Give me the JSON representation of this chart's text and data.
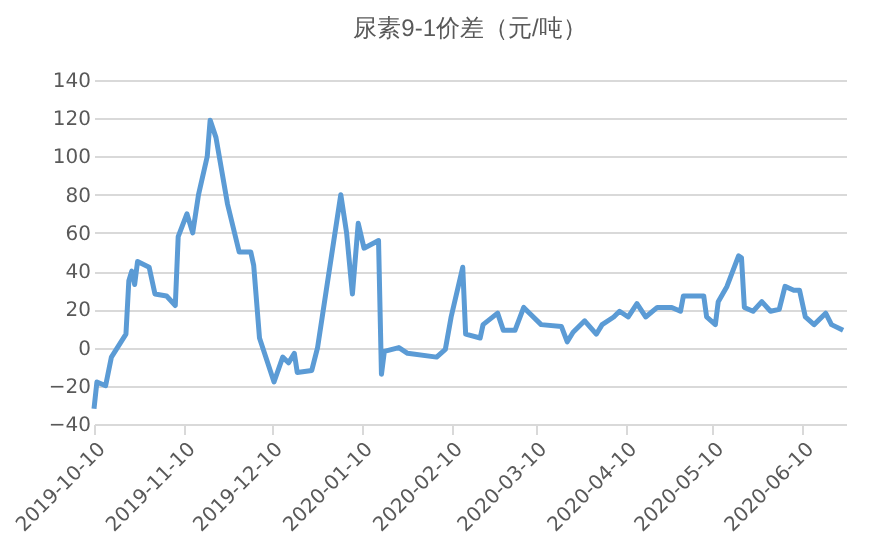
{
  "chart_data": {
    "type": "line",
    "title": "尿素9-1价差（元/吨）",
    "x": [
      "2019-10-10",
      "2019-10-11",
      "2019-10-14",
      "2019-10-16",
      "2019-10-21",
      "2019-10-22",
      "2019-10-23",
      "2019-10-24",
      "2019-10-25",
      "2019-10-29",
      "2019-10-31",
      "2019-11-04",
      "2019-11-07",
      "2019-11-08",
      "2019-11-11",
      "2019-11-13",
      "2019-11-15",
      "2019-11-18",
      "2019-11-19",
      "2019-11-21",
      "2019-11-25",
      "2019-11-29",
      "2019-12-03",
      "2019-12-04",
      "2019-12-06",
      "2019-12-11",
      "2019-12-14",
      "2019-12-16",
      "2019-12-18",
      "2019-12-19",
      "2019-12-24",
      "2019-12-26",
      "2020-01-03",
      "2020-01-05",
      "2020-01-07",
      "2020-01-09",
      "2020-01-11",
      "2020-01-16",
      "2020-01-17",
      "2020-01-18",
      "2020-01-23",
      "2020-01-26",
      "2020-02-05",
      "2020-02-08",
      "2020-02-10",
      "2020-02-14",
      "2020-02-15",
      "2020-02-20",
      "2020-02-21",
      "2020-02-26",
      "2020-02-28",
      "2020-03-03",
      "2020-03-06",
      "2020-03-08",
      "2020-03-12",
      "2020-03-19",
      "2020-03-21",
      "2020-03-23",
      "2020-03-27",
      "2020-03-31",
      "2020-04-02",
      "2020-04-06",
      "2020-04-08",
      "2020-04-11",
      "2020-04-14",
      "2020-04-17",
      "2020-04-21",
      "2020-04-26",
      "2020-04-29",
      "2020-04-30",
      "2020-05-07",
      "2020-05-08",
      "2020-05-11",
      "2020-05-12",
      "2020-05-15",
      "2020-05-19",
      "2020-05-20",
      "2020-05-21",
      "2020-05-24",
      "2020-05-27",
      "2020-05-30",
      "2020-06-02",
      "2020-06-04",
      "2020-06-07",
      "2020-06-09",
      "2020-06-11",
      "2020-06-14",
      "2020-06-18",
      "2020-06-20",
      "2020-06-24"
    ],
    "series": [
      {
        "color": "#5b9bd5",
        "values": [
          -32,
          -18,
          -20,
          -5,
          7,
          35,
          40,
          33,
          45,
          42,
          28,
          27,
          22,
          58,
          70,
          60,
          80,
          100,
          119,
          110,
          75,
          50,
          50,
          43,
          5,
          -18,
          -5,
          -8,
          -3,
          -13,
          -12,
          0,
          80,
          60,
          28,
          65,
          52,
          56,
          -14,
          -2,
          0,
          -3,
          -5,
          -1,
          16,
          42,
          7,
          5,
          12,
          18,
          9,
          9,
          21,
          18,
          12,
          11,
          3,
          8,
          14,
          7,
          12,
          16,
          19,
          16,
          23,
          16,
          21,
          21,
          19,
          27,
          27,
          16,
          12,
          24,
          32,
          48,
          47,
          21,
          19,
          24,
          19,
          20,
          32,
          30,
          30,
          16,
          12,
          18,
          12,
          9
        ]
      }
    ],
    "xlim": [
      "2019-10-10",
      "2020-06-25"
    ],
    "xticks": [
      "2019-10-10",
      "2019-11-10",
      "2019-12-10",
      "2020-01-10",
      "2020-02-10",
      "2020-03-10",
      "2020-04-10",
      "2020-05-10",
      "2020-06-10"
    ],
    "ylim": [
      -40,
      140
    ],
    "yticks": [
      -40,
      -20,
      0,
      20,
      40,
      60,
      80,
      100,
      120,
      140
    ],
    "grid": "y",
    "marker": "none",
    "line_style": "solid"
  }
}
